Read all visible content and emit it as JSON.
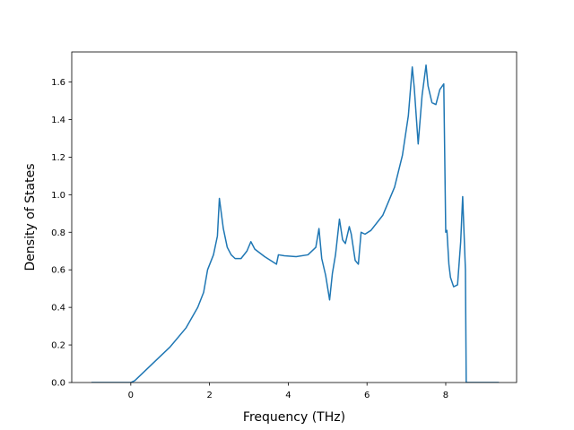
{
  "chart_data": {
    "type": "line",
    "title": "",
    "xlabel": "Frequency (THz)",
    "ylabel": "Density of States",
    "xlim": [
      -1.5,
      9.8
    ],
    "ylim": [
      0.0,
      1.76
    ],
    "x_ticks": [
      0,
      2,
      4,
      6,
      8
    ],
    "y_ticks": [
      0.0,
      0.2,
      0.4,
      0.6,
      0.8,
      1.0,
      1.2,
      1.4,
      1.6
    ],
    "x_tick_labels": [
      "0",
      "2",
      "4",
      "6",
      "8"
    ],
    "y_tick_labels": [
      "0.0",
      "0.2",
      "0.4",
      "0.6",
      "0.8",
      "1.0",
      "1.2",
      "1.4",
      "1.6"
    ],
    "grid": false,
    "line_color": "#1f77b4",
    "series": [
      {
        "x": [
          -1.0,
          -0.5,
          0.0,
          0.1,
          0.3,
          0.6,
          1.0,
          1.4,
          1.7,
          1.85,
          1.95,
          2.1,
          2.2,
          2.25,
          2.35,
          2.45,
          2.55,
          2.65,
          2.8,
          2.95,
          3.05,
          3.15,
          3.4,
          3.7,
          3.75,
          3.9,
          4.2,
          4.5,
          4.7,
          4.78,
          4.85,
          4.95,
          5.05,
          5.12,
          5.2,
          5.3,
          5.38,
          5.45,
          5.55,
          5.6,
          5.7,
          5.78,
          5.85,
          5.95,
          6.1,
          6.4,
          6.7,
          6.9,
          7.05,
          7.15,
          7.2,
          7.3,
          7.4,
          7.5,
          7.55,
          7.65,
          7.75,
          7.85,
          7.95,
          8.0,
          8.03,
          8.08,
          8.12,
          8.2,
          8.3,
          8.38,
          8.43,
          8.5,
          8.52,
          8.7,
          9.0,
          9.35
        ],
        "y": [
          0.0,
          0.0,
          0.0,
          0.01,
          0.05,
          0.11,
          0.19,
          0.29,
          0.4,
          0.48,
          0.6,
          0.68,
          0.78,
          0.98,
          0.82,
          0.72,
          0.68,
          0.66,
          0.66,
          0.7,
          0.75,
          0.71,
          0.67,
          0.63,
          0.68,
          0.675,
          0.67,
          0.68,
          0.72,
          0.82,
          0.66,
          0.57,
          0.44,
          0.58,
          0.68,
          0.87,
          0.76,
          0.74,
          0.83,
          0.79,
          0.65,
          0.63,
          0.8,
          0.79,
          0.81,
          0.89,
          1.04,
          1.21,
          1.42,
          1.68,
          1.57,
          1.27,
          1.53,
          1.69,
          1.58,
          1.49,
          1.48,
          1.56,
          1.59,
          0.8,
          0.81,
          0.63,
          0.56,
          0.51,
          0.52,
          0.75,
          0.99,
          0.6,
          0.0,
          0.0,
          0.0,
          0.0
        ]
      }
    ]
  }
}
